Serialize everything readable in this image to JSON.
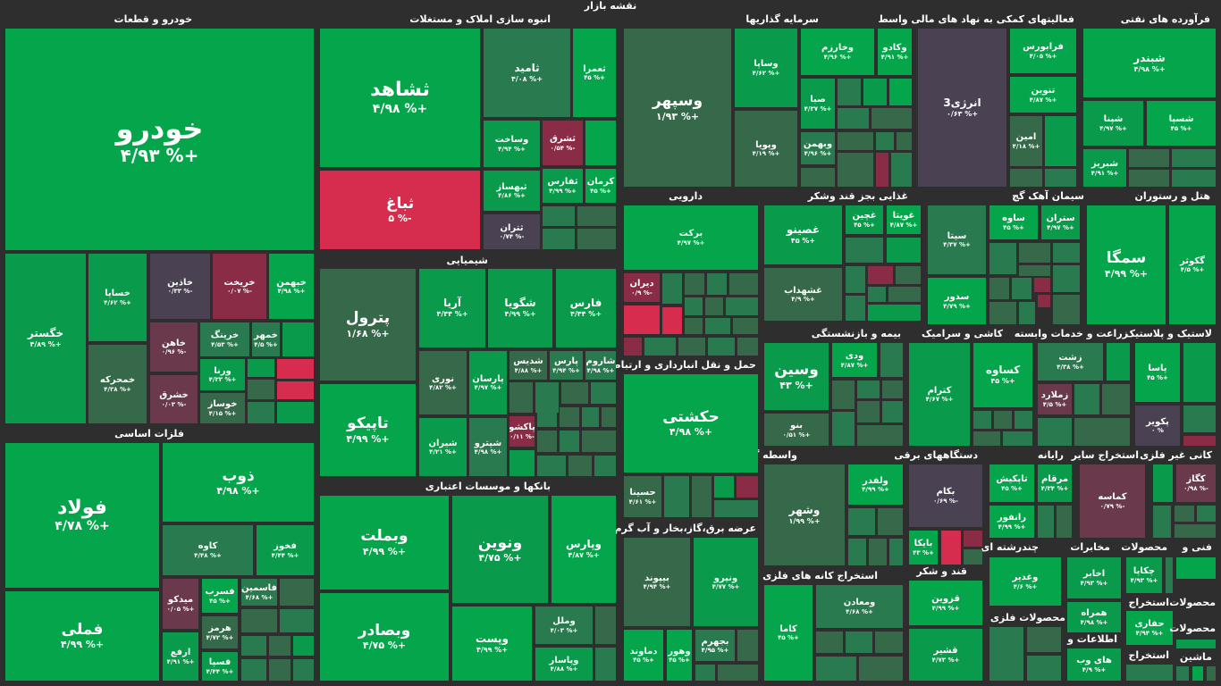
{
  "title": "نقشه بازار",
  "sections": {
    "khodro": "خودرو و قطعات",
    "anbuh": "انبوه سازی املاک و مستغلات",
    "sarmaye": "سرمایه گذاریها",
    "faaliat": "فعالیتهای کمکی به نهاد های مالی واسط",
    "naft": "فرآورده های نفتی",
    "darooei": "دارویی",
    "ghaza": "غذایی بجز قند وشکر",
    "siman": "سیمان آهک گچ",
    "hotel": "هتل و رستوران",
    "shimi": "شیمیایی",
    "felezat": "فلزات اساسی",
    "haml": "حمل و نقل انبارداری و ارتباطات",
    "bime": "بیمه و بازنشستگی",
    "kashi": "کاشی و سرامیک",
    "zeraat": "زراعت و خدمات وابسته",
    "lastic": "لاستیک و پلاستیک",
    "vasete": "واسطه گریهای مالی و پولی",
    "dastgah": "دستگاههای برقی",
    "rayane": "رایانه",
    "estekhraj": "استخراج سایر",
    "kani": "کانی غیر فلزی",
    "banks": "بانکها و موسسات اعتباری",
    "arze": "عرضه برق،گاز،بخار و آب گرم",
    "felezi": "استخراج کانه های فلزی",
    "ghand": "قند و شکر",
    "chand": "چندرشته ای",
    "mokhaberat": "مخابرات",
    "mahsulat": "محصولات",
    "fani": "فنی و",
    "mahsulat_felezi": "محصولات فلزی",
    "ettelaat": "اطلاعات و"
  },
  "tiles": {
    "khodro": {
      "name": "خودرو",
      "value": "۴/۹۳ %+"
    },
    "khegostar": {
      "name": "خگستر",
      "value": "۴/۸۹ %+"
    },
    "khsapa": {
      "name": "خساپا",
      "value": "۴/۶۲ %+"
    },
    "khazin": {
      "name": "خاذین",
      "value": "۰/۳۳ %-"
    },
    "kharikht": {
      "name": "خریخت",
      "value": "۰/۰۷ %-"
    },
    "khbahman": {
      "name": "خبهمن",
      "value": "۴/۹۸ %+"
    },
    "khamrah": {
      "name": "خمحرکه",
      "value": "۴/۳۸ %+"
    },
    "khahen": {
      "name": "خاهن",
      "value": "۰/۹۶ %-"
    },
    "khring": {
      "name": "خرینگ",
      "value": "۴/۵۳ %+"
    },
    "khmohr": {
      "name": "خمهر",
      "value": "۴/۵ %+"
    },
    "varna": {
      "name": "ورنا",
      "value": "۴/۳۳ %+"
    },
    "khshargh": {
      "name": "خشرق",
      "value": "۰/۰۳ %-"
    },
    "khosaz": {
      "name": "خوساز",
      "value": "۴/۱۵ %+"
    },
    "feolad": {
      "name": "فولاد",
      "value": "۴/۷۸ %+"
    },
    "zob": {
      "name": "ذوب",
      "value": "۴/۹۸ %+"
    },
    "kaveh": {
      "name": "کاوه",
      "value": "۴/۴۸ %+"
    },
    "fkhoz": {
      "name": "فخوز",
      "value": "۴/۴۴ %+"
    },
    "fmeli": {
      "name": "فملی",
      "value": "۴/۹۹ %+"
    },
    "midco": {
      "name": "میدکو",
      "value": "۰/۰۵ %+"
    },
    "fasrab": {
      "name": "فسرب",
      "value": "۴۵ %+"
    },
    "fasmin": {
      "name": "فاسمین",
      "value": "۴/۶۸ %+"
    },
    "hormoz": {
      "name": "هرمز",
      "value": "۴/۷۲ %+"
    },
    "arfa": {
      "name": "ارفع",
      "value": "۴/۹۱ %+"
    },
    "fsepa": {
      "name": "فسپا",
      "value": "۴/۴۴ %+"
    },
    "shahed": {
      "name": "ثشاهد",
      "value": "۴/۹۸ %+"
    },
    "samid": {
      "name": "ثامید",
      "value": "۴/۰۸ %+"
    },
    "samra": {
      "name": "ثعمرا",
      "value": "۴۵ %+"
    },
    "sbagh": {
      "name": "ثباغ",
      "value": "۵ %-"
    },
    "vsakht": {
      "name": "وساخت",
      "value": "۴/۹۴ %+"
    },
    "sshargh": {
      "name": "ثشرق",
      "value": "۰/۵۴ %-"
    },
    "sbhsaz": {
      "name": "ثبهساز",
      "value": "۴/۸۶ %+"
    },
    "sfars": {
      "name": "ثفارس",
      "value": "۴/۹۹ %+"
    },
    "skerman": {
      "name": "کرمان",
      "value": "۴۵ %+"
    },
    "strn": {
      "name": "ثتران",
      "value": "۰/۷۴ %-"
    },
    "vsepehr": {
      "name": "وسپهر",
      "value": "۱/۹۳ %+"
    },
    "vsapa": {
      "name": "وساپا",
      "value": "۴/۶۲ %+"
    },
    "vkharazm": {
      "name": "وخارزم",
      "value": "۴/۹۶ %+"
    },
    "vkado": {
      "name": "وکادو",
      "value": "۴/۹۱ %+"
    },
    "sba": {
      "name": "صبا",
      "value": "۴/۳۷ %+"
    },
    "vebank": {
      "name": "وپویا",
      "value": "۴/۱۹ %+"
    },
    "vbahman": {
      "name": "وبهمن",
      "value": "۴/۹۶ %+"
    },
    "energy3": {
      "name": "انرژی3",
      "value": "۰/۶۳ %+"
    },
    "farabours": {
      "name": "فرابورس",
      "value": "۴/۰۵ %+"
    },
    "tonin": {
      "name": "تنوین",
      "value": "۴/۸۷ %+"
    },
    "amin": {
      "name": "امین",
      "value": "۴/۱۸ %+"
    },
    "shbandar": {
      "name": "شبندر",
      "value": "۴/۹۸ %+"
    },
    "shpna": {
      "name": "شپنا",
      "value": "۴/۹۷ %+"
    },
    "shsapa": {
      "name": "شسپا",
      "value": "۴۵ %+"
    },
    "shtabriz": {
      "name": "شبریز",
      "value": "۴/۹۱ %+"
    },
    "barkat": {
      "name": "برکت",
      "value": "۴/۹۷ %+"
    },
    "diran": {
      "name": "دیران",
      "value": "۰/۹ %-"
    },
    "ghsino": {
      "name": "غصینو",
      "value": "۴۵ %+"
    },
    "ghchin": {
      "name": "غچین",
      "value": "۴۵ %+"
    },
    "ghoita": {
      "name": "غویتا",
      "value": "۴/۸۷ %+"
    },
    "ghshahd": {
      "name": "غشهداب",
      "value": "۴/۹ %+"
    },
    "sita": {
      "name": "سیتا",
      "value": "۴/۳۷ %+"
    },
    "saveh": {
      "name": "ساوه",
      "value": "۴۵ %+"
    },
    "sterān": {
      "name": "ستران",
      "value": "۴/۹۷ %+"
    },
    "sdor": {
      "name": "سدور",
      "value": "۴/۷۹ %+"
    },
    "samga": {
      "name": "سمگا",
      "value": "۴/۹۹ %+"
    },
    "gkosar": {
      "name": "گکوثر",
      "value": "۴/۵ %+"
    },
    "petrol": {
      "name": "پترول",
      "value": "۱/۶۸ %+"
    },
    "arya": {
      "name": "آریا",
      "value": "۴/۴۴ %+"
    },
    "shgoya": {
      "name": "شگویا",
      "value": "۴/۹۹ %+"
    },
    "fars": {
      "name": "فارس",
      "value": "۴/۴۴ %+"
    },
    "nori": {
      "name": "نوری",
      "value": "۴/۸۲ %+"
    },
    "parsan": {
      "name": "پارسان",
      "value": "۴/۹۷ %+"
    },
    "shdis": {
      "name": "شدیس",
      "value": "۴/۸۸ %+"
    },
    "pars": {
      "name": "پارس",
      "value": "۴/۹۴ %+"
    },
    "sharom": {
      "name": "شاروم",
      "value": "۴/۹۸ %+"
    },
    "tapico": {
      "name": "تاپیکو",
      "value": "۴/۹۹ %+"
    },
    "shiran": {
      "name": "شیران",
      "value": "۴/۲۱ %+"
    },
    "shetrano": {
      "name": "شپترو",
      "value": "۴/۹۸ %+"
    },
    "pakhsho": {
      "name": "پاکشو",
      "value": "۰/۱۱ %-"
    },
    "hakashti": {
      "name": "حکشتی",
      "value": "۴/۹۸ %+"
    },
    "hsina": {
      "name": "حسینا",
      "value": "۴/۶۱ %+"
    },
    "vsin": {
      "name": "وسین",
      "value": "۴۳ %+"
    },
    "vdi": {
      "name": "ودی",
      "value": "۴/۸۷ %+"
    },
    "bno": {
      "name": "بنو",
      "value": "۰/۵۱ %+"
    },
    "kram": {
      "name": "کترام",
      "value": "۴/۶۷ %+"
    },
    "ksaveh": {
      "name": "کساوه",
      "value": "۴۵ %+"
    },
    "zsht": {
      "name": "زشت",
      "value": "۴/۳۸ %+"
    },
    "zmlard": {
      "name": "زملارد",
      "value": "۴/۵ %+"
    },
    "pasa": {
      "name": "پاسا",
      "value": "۴۵ %+"
    },
    "pkvir": {
      "name": "پکویر",
      "value": "۰ %"
    },
    "vshahr": {
      "name": "وشهر",
      "value": "۱/۹۹ %+"
    },
    "vlfadr": {
      "name": "ولفدر",
      "value": "۴/۹۹ %+"
    },
    "bkam": {
      "name": "بکام",
      "value": "۰/۶۹ %-"
    },
    "bayka": {
      "name": "بایکا",
      "value": "۴۳ %+"
    },
    "tapikish": {
      "name": "تاپکیش",
      "value": "۴۵ %+"
    },
    "mrgham": {
      "name": "مرقام",
      "value": "۴/۳۴ %+"
    },
    "ranfor": {
      "name": "رانفور",
      "value": "۴/۹۹ %+"
    },
    "kamasa": {
      "name": "کماسه",
      "value": "۰/۷۹ %-"
    },
    "kgaz": {
      "name": "کگاز",
      "value": "۰/۹۸ %-"
    },
    "vbmellat": {
      "name": "وبملت",
      "value": "۴/۹۹ %+"
    },
    "vnovin": {
      "name": "ونوین",
      "value": "۴/۷۵ %+"
    },
    "vpars": {
      "name": "وپارس",
      "value": "۴/۸۷ %+"
    },
    "vbsader": {
      "name": "وبصادر",
      "value": "۴/۷۵ %+"
    },
    "vpost": {
      "name": "وپست",
      "value": "۴/۹۹ %+"
    },
    "vmelal": {
      "name": "وملل",
      "value": "۴/۰۳ %+"
    },
    "vpasar": {
      "name": "وپاسار",
      "value": "۴/۸۸ %+"
    },
    "bipond": {
      "name": "بیپوند",
      "value": "۴/۹۴ %+"
    },
    "vnirou": {
      "name": "ونیرو",
      "value": "۴/۷۷ %+"
    },
    "damlond": {
      "name": "دماوند",
      "value": "۴۵ %+"
    },
    "vhor": {
      "name": "وهور",
      "value": "۴۵ %+"
    },
    "bjhrom": {
      "name": "بجهرم",
      "value": "۴/۹۵ %+"
    },
    "kama": {
      "name": "کاما",
      "value": "۴۵ %+"
    },
    "vmaden": {
      "name": "ومعادن",
      "value": "۴/۶۸ %+"
    },
    "ghzvin": {
      "name": "قزوین",
      "value": "۴/۹۹ %+"
    },
    "ghshir": {
      "name": "قشیر",
      "value": "۴/۷۳ %+"
    },
    "vghdir": {
      "name": "وغدیر",
      "value": "۴/۶ %+"
    },
    "akhaber": {
      "name": "اخابر",
      "value": "۴/۹۳ %+"
    },
    "hamrah": {
      "name": "همراه",
      "value": "۴/۹۸ %+"
    },
    "chkapa": {
      "name": "چکاپا",
      "value": "۴/۹۳ %+"
    },
    "hafari": {
      "name": "حفاری",
      "value": "۴/۹۴ %+"
    },
    "hayvab": {
      "name": "های وب",
      "value": "۴/۹ %+"
    },
    "mahin": {
      "name": "ماشین",
      "value": ""
    },
    "mahsulat2": {
      "name": "محصولات",
      "value": ""
    },
    "estekh2": {
      "name": "استخراج",
      "value": ""
    }
  }
}
